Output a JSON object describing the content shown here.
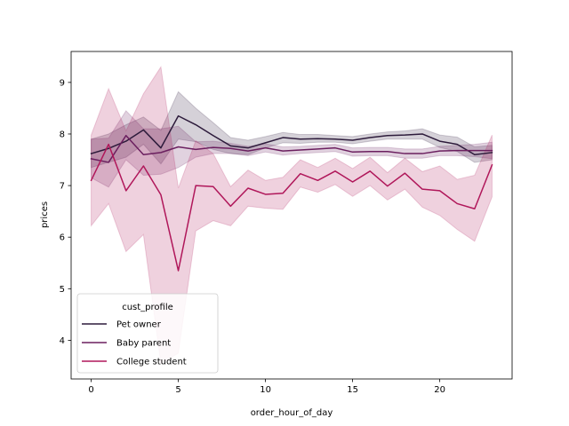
{
  "chart_data": {
    "type": "line",
    "title": "",
    "xlabel": "order_hour_of_day",
    "ylabel": "prices",
    "xlim": [
      -1.15,
      24.15
    ],
    "ylim": [
      3.25,
      9.6
    ],
    "xticks": [
      0,
      5,
      10,
      15,
      20
    ],
    "yticks": [
      4,
      5,
      6,
      7,
      8,
      9
    ],
    "grid": false,
    "legend": {
      "title": "cust_profile",
      "placement": "lower-left"
    },
    "x": [
      0,
      1,
      2,
      3,
      4,
      5,
      6,
      7,
      8,
      9,
      10,
      11,
      12,
      13,
      14,
      15,
      16,
      17,
      18,
      19,
      20,
      21,
      22,
      23
    ],
    "series": [
      {
        "name": "Pet owner",
        "color": "#2d1b3b",
        "values": [
          7.62,
          7.72,
          7.86,
          8.08,
          7.73,
          8.35,
          8.18,
          7.97,
          7.77,
          7.73,
          7.83,
          7.93,
          7.9,
          7.91,
          7.9,
          7.88,
          7.93,
          7.97,
          7.98,
          8.0,
          7.86,
          7.8,
          7.6,
          7.64
        ],
        "lower": [
          7.35,
          7.45,
          7.55,
          7.8,
          7.42,
          7.9,
          7.85,
          7.7,
          7.62,
          7.6,
          7.73,
          7.83,
          7.82,
          7.84,
          7.84,
          7.81,
          7.86,
          7.9,
          7.9,
          7.9,
          7.74,
          7.66,
          7.45,
          7.5
        ],
        "upper": [
          7.9,
          8.0,
          8.18,
          8.33,
          8.07,
          8.82,
          8.5,
          8.22,
          7.93,
          7.88,
          7.95,
          8.03,
          7.99,
          7.99,
          7.97,
          7.95,
          8.0,
          8.04,
          8.06,
          8.1,
          7.98,
          7.94,
          7.75,
          7.78
        ]
      },
      {
        "name": "Baby parent",
        "color": "#6b1f5f",
        "values": [
          7.52,
          7.45,
          7.97,
          7.6,
          7.64,
          7.75,
          7.7,
          7.74,
          7.72,
          7.67,
          7.73,
          7.67,
          7.69,
          7.71,
          7.73,
          7.65,
          7.66,
          7.66,
          7.62,
          7.62,
          7.67,
          7.68,
          7.68,
          7.68
        ],
        "lower": [
          7.15,
          6.97,
          7.5,
          7.2,
          7.22,
          7.35,
          7.55,
          7.62,
          7.62,
          7.58,
          7.65,
          7.59,
          7.62,
          7.64,
          7.66,
          7.57,
          7.58,
          7.58,
          7.53,
          7.53,
          7.58,
          7.58,
          7.56,
          7.52
        ],
        "upper": [
          7.9,
          7.92,
          8.45,
          8.1,
          8.1,
          8.15,
          7.85,
          7.86,
          7.82,
          7.76,
          7.81,
          7.75,
          7.76,
          7.78,
          7.8,
          7.73,
          7.74,
          7.74,
          7.71,
          7.71,
          7.76,
          7.78,
          7.8,
          7.84
        ]
      },
      {
        "name": "College student",
        "color": "#b0175a",
        "values": [
          7.1,
          7.8,
          6.9,
          7.38,
          6.82,
          5.35,
          7.0,
          6.98,
          6.6,
          6.95,
          6.83,
          6.85,
          7.23,
          7.1,
          7.28,
          7.07,
          7.28,
          6.99,
          7.24,
          6.93,
          6.9,
          6.65,
          6.55,
          7.4
        ],
        "lower": [
          6.22,
          6.65,
          5.72,
          6.05,
          3.55,
          3.75,
          6.12,
          6.32,
          6.22,
          6.6,
          6.56,
          6.54,
          6.97,
          6.87,
          7.02,
          6.79,
          7.0,
          6.72,
          6.93,
          6.58,
          6.42,
          6.15,
          5.92,
          6.78
        ],
        "upper": [
          7.98,
          8.88,
          8.06,
          8.78,
          9.3,
          6.95,
          7.87,
          7.62,
          6.98,
          7.3,
          7.1,
          7.16,
          7.5,
          7.35,
          7.53,
          7.33,
          7.55,
          7.25,
          7.53,
          7.27,
          7.38,
          7.12,
          7.2,
          7.98
        ]
      }
    ]
  }
}
